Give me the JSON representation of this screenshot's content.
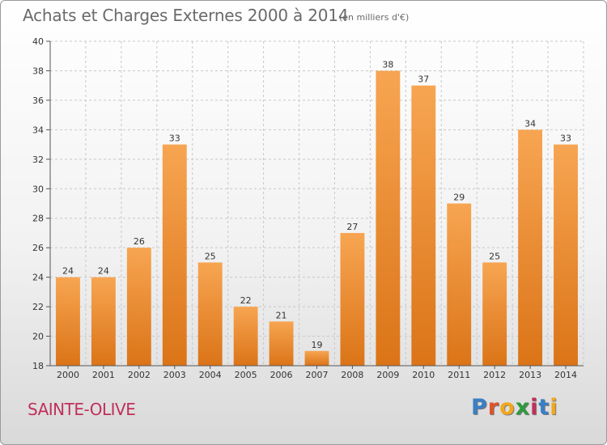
{
  "header": {
    "title": "Achats et Charges Externes 2000 à 2014",
    "unit": "(en milliers d'€)"
  },
  "footer": {
    "city": "SAINTE-OLIVE",
    "logo_letters": [
      {
        "char": "P",
        "color": "#3a7fc4"
      },
      {
        "char": "r",
        "color": "#e0522a"
      },
      {
        "char": "o",
        "color": "#f2a81d"
      },
      {
        "char": "x",
        "color": "#2e9a3e"
      },
      {
        "char": "i",
        "color": "#c0305b"
      },
      {
        "char": "t",
        "color": "#3a7fc4"
      },
      {
        "char": "i",
        "color": "#f2a81d"
      }
    ]
  },
  "colors": {
    "bar_top": "#f7a552",
    "bar_bottom": "#db7417",
    "axis": "#555555",
    "grid": "#c8c8c8",
    "text": "#333333"
  },
  "chart_data": {
    "type": "bar",
    "title": "Achats et Charges Externes 2000 à 2014",
    "subtitle": "(en milliers d'€)",
    "xlabel": "",
    "ylabel": "",
    "categories": [
      "2000",
      "2001",
      "2002",
      "2003",
      "2004",
      "2005",
      "2006",
      "2007",
      "2008",
      "2009",
      "2010",
      "2011",
      "2012",
      "2013",
      "2014"
    ],
    "values": [
      24,
      24,
      26,
      33,
      25,
      22,
      21,
      19,
      27,
      38,
      37,
      29,
      25,
      34,
      33
    ],
    "ylim": [
      18,
      40
    ],
    "yticks": [
      18,
      20,
      22,
      24,
      26,
      28,
      30,
      32,
      34,
      36,
      38,
      40
    ],
    "grid": "horizontal dashed",
    "legend": "none",
    "data_labels": true
  }
}
